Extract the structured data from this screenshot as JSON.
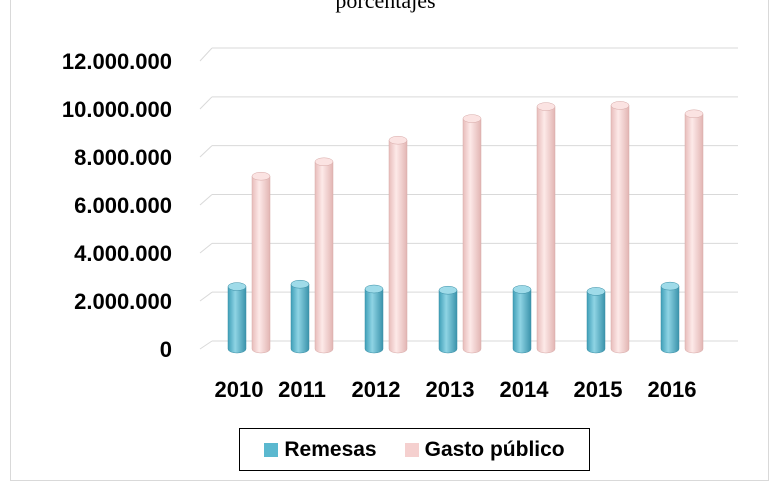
{
  "chart_data": {
    "type": "bar",
    "title": "porcentajes",
    "categories": [
      "2010",
      "2011",
      "2012",
      "2013",
      "2014",
      "2015",
      "2016"
    ],
    "series": [
      {
        "name": "Remesas",
        "color": "#5bb8cf",
        "values": [
          2600000,
          2700000,
          2500000,
          2450000,
          2480000,
          2400000,
          2620000
        ]
      },
      {
        "name": "Gasto público",
        "color": "#f5d0cf",
        "values": [
          7200000,
          7800000,
          8700000,
          9600000,
          10100000,
          10150000,
          9800000
        ]
      }
    ],
    "yticks": [
      "0",
      "2.000.000",
      "4.000.000",
      "6.000.000",
      "8.000.000",
      "10.000.000",
      "12.000.000"
    ],
    "ylim": [
      0,
      12000000
    ],
    "grid": true,
    "legend_position": "bottom",
    "style": "3d-cylinder"
  }
}
